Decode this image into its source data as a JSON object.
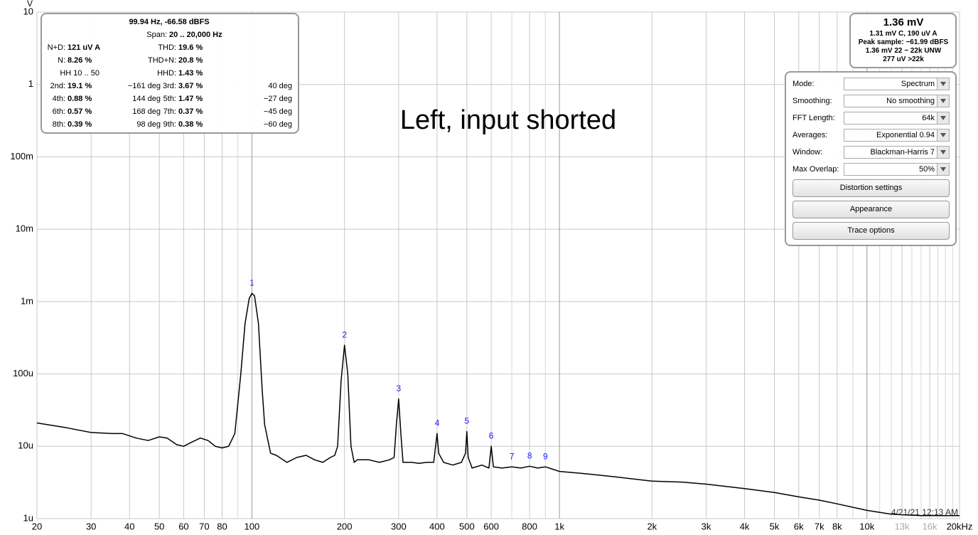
{
  "chart_data": {
    "type": "line",
    "title": "Left, input shorted",
    "y_label": "V",
    "log_x": true,
    "log_y": true,
    "grid": true,
    "xlim": [
      20,
      20000
    ],
    "ylim": [
      1e-06,
      10
    ],
    "xticks": [
      20,
      30,
      40,
      50,
      60,
      70,
      80,
      100,
      200,
      300,
      400,
      500,
      600,
      800,
      {
        "value": 1000,
        "label": "1k"
      },
      {
        "value": 2000,
        "label": "2k"
      },
      {
        "value": 3000,
        "label": "3k"
      },
      {
        "value": 4000,
        "label": "4k"
      },
      {
        "value": 5000,
        "label": "5k"
      },
      {
        "value": 6000,
        "label": "6k"
      },
      {
        "value": 7000,
        "label": "7k"
      },
      {
        "value": 8000,
        "label": "8k"
      },
      {
        "value": 10000,
        "label": "10k"
      },
      {
        "value": 13000,
        "label": "13k",
        "muted": true
      },
      {
        "value": 16000,
        "label": "16k",
        "muted": true
      },
      {
        "value": 20000,
        "label": "20kHz"
      }
    ],
    "xminor": [
      90,
      700,
      900,
      9000,
      11000,
      12000,
      14000,
      15000,
      17000,
      18000,
      19000
    ],
    "yticks": [
      10,
      1,
      {
        "value": 0.1,
        "label": "100m"
      },
      {
        "value": 0.01,
        "label": "10m"
      },
      {
        "value": 0.001,
        "label": "1m"
      },
      {
        "value": 0.0001,
        "label": "100u"
      },
      {
        "value": 1e-05,
        "label": "10u"
      },
      {
        "value": 1e-06,
        "label": "1u"
      }
    ],
    "x": [
      20,
      25,
      30,
      35,
      38,
      42,
      46,
      50,
      53,
      57,
      60,
      64,
      68,
      72,
      76,
      80,
      84,
      88,
      92,
      95,
      98,
      100,
      102,
      105,
      108,
      110,
      115,
      120,
      130,
      140,
      150,
      160,
      170,
      180,
      186,
      190,
      195,
      200,
      205,
      210,
      215,
      220,
      240,
      260,
      280,
      290,
      295,
      300,
      305,
      310,
      330,
      350,
      370,
      390,
      400,
      405,
      420,
      450,
      480,
      495,
      500,
      505,
      520,
      560,
      590,
      600,
      610,
      650,
      700,
      750,
      800,
      850,
      900,
      1000,
      1200,
      1500,
      2000,
      2500,
      3000,
      4000,
      5000,
      6000,
      7000,
      8000,
      10000,
      12000,
      15000,
      20000
    ],
    "series": [
      {
        "color": "#000000",
        "values": [
          2.1e-05,
          1.8e-05,
          1.55e-05,
          1.5e-05,
          1.5e-05,
          1.3e-05,
          1.2e-05,
          1.35e-05,
          1.3e-05,
          1.05e-05,
          1e-05,
          1.15e-05,
          1.3e-05,
          1.2e-05,
          1e-05,
          9.5e-06,
          1e-05,
          1.5e-05,
          0.0001,
          0.0005,
          0.0011,
          0.0013,
          0.0012,
          0.0005,
          6e-05,
          2e-05,
          8e-06,
          7.5e-06,
          6e-06,
          7e-06,
          7.5e-06,
          6.5e-06,
          6e-06,
          7e-06,
          7.5e-06,
          1e-05,
          8e-05,
          0.00025,
          0.0001,
          1e-05,
          6e-06,
          6.5e-06,
          6.5e-06,
          6e-06,
          6.5e-06,
          7e-06,
          2e-05,
          4.5e-05,
          1.5e-05,
          6e-06,
          6e-06,
          5.8e-06,
          6e-06,
          6e-06,
          1.5e-05,
          8e-06,
          6e-06,
          5.5e-06,
          6e-06,
          8e-06,
          1.6e-05,
          7e-06,
          5e-06,
          5.5e-06,
          5e-06,
          1e-05,
          5.2e-06,
          5e-06,
          5.2e-06,
          5e-06,
          5.3e-06,
          5e-06,
          5.2e-06,
          4.5e-06,
          4.2e-06,
          3.8e-06,
          3.3e-06,
          3.2e-06,
          3e-06,
          2.6e-06,
          2.3e-06,
          2e-06,
          1.8e-06,
          1.6e-06,
          1.3e-06,
          1.15e-06,
          1.1e-06,
          1.1e-06
        ]
      }
    ],
    "harmonics": [
      {
        "label": "1",
        "x": 100,
        "value": 0.0013
      },
      {
        "label": "2",
        "x": 200,
        "value": 0.00025
      },
      {
        "label": "3",
        "x": 300,
        "value": 4.5e-05
      },
      {
        "label": "4",
        "x": 400,
        "value": 1.5e-05
      },
      {
        "label": "5",
        "x": 500,
        "value": 1.6e-05
      },
      {
        "label": "6",
        "x": 600,
        "value": 1e-05
      },
      {
        "label": "7",
        "x": 700,
        "value": 5.2e-06
      },
      {
        "label": "8",
        "x": 800,
        "value": 5.3e-06
      },
      {
        "label": "9",
        "x": 900,
        "value": 5.2e-06
      }
    ],
    "timestamp": "4/21/21 12:13 AM"
  },
  "stats_panel": {
    "header": "99.94 Hz, -66.58 dBFS",
    "span": {
      "label": "Span:",
      "value": "20 .. 20,000 Hz"
    },
    "rows": [
      {
        "left": {
          "label": "N+D:",
          "value": "121 uV A"
        },
        "right": {
          "label": "THD:",
          "value": "19.6 %"
        }
      },
      {
        "left": {
          "label": "N:",
          "value": "8.26 %"
        },
        "right": {
          "label": "THD+N:",
          "value": "20.8 %"
        }
      },
      {
        "left": {
          "label": "HH 10 .. 50"
        },
        "right": {
          "label": "HHD:",
          "value": "1.43 %"
        }
      },
      {
        "left": {
          "label": "2nd:",
          "value": "19.1 %"
        },
        "left_phase": "−161 deg",
        "right": {
          "label": "3rd:",
          "value": "3.67 %"
        },
        "right_phase": "40 deg"
      },
      {
        "left": {
          "label": "4th:",
          "value": "0.88 %"
        },
        "left_phase": "144 deg",
        "right": {
          "label": "5th:",
          "value": "1.47 %"
        },
        "right_phase": "−27 deg"
      },
      {
        "left": {
          "label": "6th:",
          "value": "0.57 %"
        },
        "left_phase": "168 deg",
        "right": {
          "label": "7th:",
          "value": "0.37 %"
        },
        "right_phase": "−45 deg"
      },
      {
        "left": {
          "label": "8th:",
          "value": "0.39 %"
        },
        "left_phase": "98 deg",
        "right": {
          "label": "9th:",
          "value": "0.38 %"
        },
        "right_phase": "−60 deg"
      }
    ]
  },
  "level_panel": {
    "main": "1.36 mV",
    "lines": [
      "1.31 mV C, 190 uV A",
      "Peak sample: −61.99 dBFS",
      "1.36 mV 22 − 22k UNW",
      "277 uV >22k"
    ]
  },
  "settings_panel": {
    "settings": [
      {
        "label": "Mode:",
        "value": "Spectrum"
      },
      {
        "label": "Smoothing:",
        "value": "No  smoothing"
      },
      {
        "label": "FFT Length:",
        "value": "64k"
      },
      {
        "label": "Averages:",
        "value": "Exponential 0.94"
      },
      {
        "label": "Window:",
        "value": "Blackman-Harris 7"
      },
      {
        "label": "Max Overlap:",
        "value": "50%"
      }
    ],
    "buttons": [
      "Distortion settings",
      "Appearance",
      "Trace options"
    ]
  }
}
